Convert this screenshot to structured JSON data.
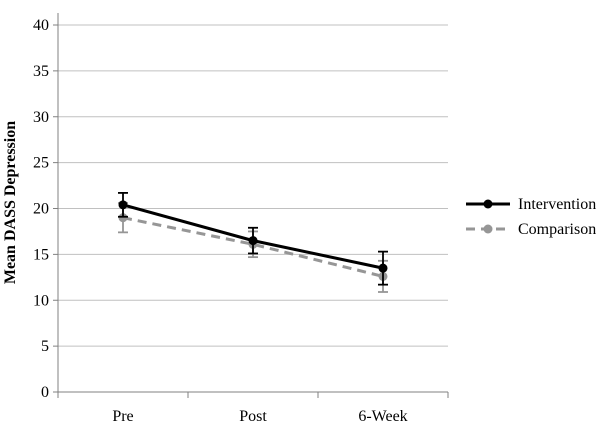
{
  "chart_data": {
    "type": "line",
    "categories": [
      "Pre",
      "Post",
      "6-Week"
    ],
    "series": [
      {
        "name": "Comparison",
        "values": [
          19.0,
          16.1,
          12.6
        ],
        "errors": [
          1.6,
          1.4,
          1.7
        ],
        "color": "#969696",
        "style": "dashed"
      },
      {
        "name": "Intervention",
        "values": [
          20.4,
          16.5,
          13.5
        ],
        "errors": [
          1.3,
          1.4,
          1.8
        ],
        "color": "#000000",
        "style": "solid"
      }
    ],
    "title": "",
    "xlabel": "",
    "ylabel": "Mean DASS Depression",
    "ylim": [
      0,
      40
    ],
    "ytick_step": 5,
    "yticks": [
      0,
      5,
      10,
      15,
      20,
      25,
      30,
      35,
      40
    ],
    "grid": true,
    "legend_position": "right",
    "colors": {
      "gridline": "#c0c0c0",
      "axis": "#808080",
      "text": "#000000",
      "background": "#ffffff"
    }
  }
}
